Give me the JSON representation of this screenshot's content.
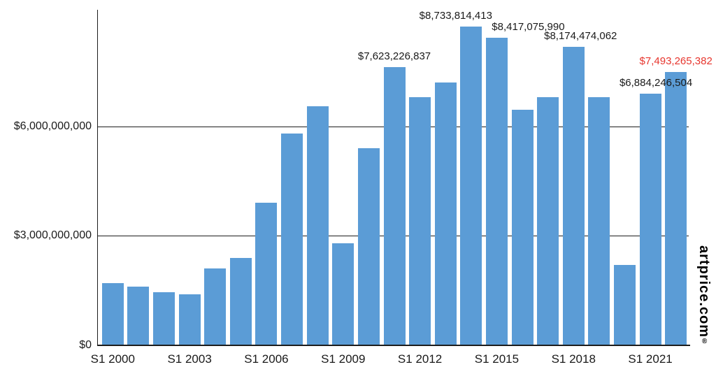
{
  "watermark": {
    "text": "artprice.com",
    "reg": "®"
  },
  "chart_data": {
    "type": "bar",
    "title": "",
    "categories": [
      "S1 2000",
      "S1 2001",
      "S1 2002",
      "S1 2003",
      "S1 2004",
      "S1 2005",
      "S1 2006",
      "S1 2007",
      "S1 2008",
      "S1 2009",
      "S1 2010",
      "S1 2011",
      "S1 2012",
      "S1 2013",
      "S1 2014",
      "S1 2015",
      "S1 2016",
      "S1 2017",
      "S1 2018",
      "S1 2019",
      "S1 2020",
      "S1 2021",
      "S1 2022"
    ],
    "values": [
      1700000000,
      1600000000,
      1450000000,
      1400000000,
      2100000000,
      2400000000,
      3900000000,
      5800000000,
      6550000000,
      2800000000,
      5400000000,
      7623226837,
      6800000000,
      7200000000,
      8733814413,
      8417075990,
      6450000000,
      6800000000,
      8174474062,
      6800000000,
      2200000000,
      6884246504,
      7493265382
    ],
    "x_tick_labels": [
      "S1 2000",
      "S1 2003",
      "S1 2006",
      "S1 2009",
      "S1 2012",
      "S1 2015",
      "S1 2018",
      "S1 2021"
    ],
    "x_tick_indices": [
      0,
      3,
      6,
      9,
      12,
      15,
      18,
      21
    ],
    "y_ticks": [
      {
        "value": 0,
        "label": "$0"
      },
      {
        "value": 3000000000,
        "label": "$3,000,000,000"
      },
      {
        "value": 6000000000,
        "label": "$6,000,000,000"
      }
    ],
    "ylim": [
      0,
      9000000000
    ],
    "grid": "horizontal",
    "legend": "none",
    "bar_color": "#5b9cd6",
    "text_color": "#1a1a1a",
    "highlight_color": "#e7362e",
    "annotations": [
      {
        "index": 11,
        "text": "$7,623,226,837",
        "color": "#1a1a1a",
        "dx": 0
      },
      {
        "index": 14,
        "text": "$8,733,814,413",
        "color": "#1a1a1a",
        "dx": -22
      },
      {
        "index": 15,
        "text": "$8,417,075,990",
        "color": "#1a1a1a",
        "dx": 45
      },
      {
        "index": 18,
        "text": "$8,174,474,062",
        "color": "#1a1a1a",
        "dx": 10
      },
      {
        "index": 21,
        "text": "$6,884,246,504",
        "color": "#1a1a1a",
        "dx": 8
      },
      {
        "index": 22,
        "text": "$7,493,265,382",
        "color": "#e7362e",
        "dx": 0
      }
    ]
  }
}
